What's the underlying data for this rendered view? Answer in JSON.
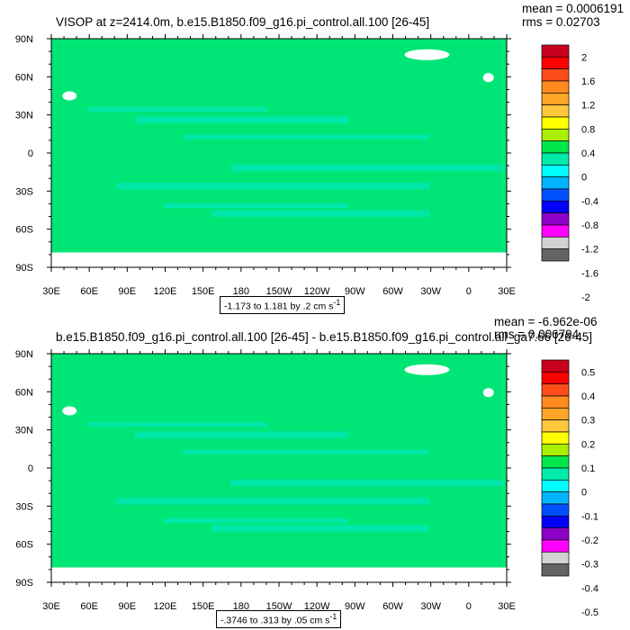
{
  "chart_data": [
    {
      "type": "heatmap",
      "title": "VISOP at z=2414.0m, b.e15.B1850.f09_g16.pi_control.all.100 [26-45]",
      "stats": {
        "mean": "mean = 0.0006191",
        "rms": "rms = 0.02703"
      },
      "contour_info": "-1.173 to 1.181 by .2 cm s",
      "contour_info_exp": "-1",
      "x_ticks": [
        "30E",
        "60E",
        "90E",
        "120E",
        "150E",
        "180",
        "150W",
        "120W",
        "90W",
        "60W",
        "30W",
        "0",
        "30E"
      ],
      "y_ticks": [
        "90N",
        "60N",
        "30N",
        "0",
        "30S",
        "60S",
        "90S"
      ],
      "xlim": [
        "30E",
        "30E"
      ],
      "ylim": [
        "90S",
        "90N"
      ],
      "colorbar_levels": [
        "2",
        "1.6",
        "1.2",
        "0.8",
        "0.4",
        "0",
        "-0.4",
        "-0.8",
        "-1.2",
        "-1.6",
        "-2"
      ],
      "colorbar_colors": [
        "#c8001e",
        "#ff0000",
        "#ff4d1a",
        "#ff8a1e",
        "#ffa528",
        "#ffc83c",
        "#ffff00",
        "#aaee00",
        "#00e64b",
        "#00ebaa",
        "#00ffff",
        "#00b4ff",
        "#0050ff",
        "#0000ff",
        "#8c00c8",
        "#ff00ff",
        "#d2d2d2",
        "#646464"
      ],
      "field_colors": {
        "main": "#00e676",
        "secondary": "#00e6b4"
      },
      "grid": false
    },
    {
      "type": "heatmap",
      "title": "b.e15.B1850.f09_g16.pi_control.all.100 [26-45] - b.e15.B1850.f09_g16.pi_control.all_ga7.66 [26-45]",
      "stats": {
        "mean": "mean = -6.962e-06",
        "rms": "rms = 0.006794"
      },
      "contour_info": "-.3746 to .313 by .05 cm s",
      "contour_info_exp": "-1",
      "x_ticks": [
        "30E",
        "60E",
        "90E",
        "120E",
        "150E",
        "180",
        "150W",
        "120W",
        "90W",
        "60W",
        "30W",
        "0",
        "30E"
      ],
      "y_ticks": [
        "90N",
        "60N",
        "30N",
        "0",
        "30S",
        "60S",
        "90S"
      ],
      "xlim": [
        "30E",
        "30E"
      ],
      "ylim": [
        "90S",
        "90N"
      ],
      "colorbar_levels": [
        "0.5",
        "0.4",
        "0.3",
        "0.2",
        "0.1",
        "0",
        "-0.1",
        "-0.2",
        "-0.3",
        "-0.4",
        "-0.5"
      ],
      "colorbar_colors": [
        "#c8001e",
        "#ff0000",
        "#ff4d1a",
        "#ff8a1e",
        "#ffa528",
        "#ffc83c",
        "#ffff00",
        "#aaee00",
        "#00e64b",
        "#00ebaa",
        "#00ffff",
        "#00b4ff",
        "#0050ff",
        "#0000ff",
        "#8c00c8",
        "#ff00ff",
        "#d2d2d2",
        "#646464"
      ],
      "field_colors": {
        "main": "#00e676",
        "secondary": "#00e6b4"
      },
      "grid": false
    }
  ]
}
